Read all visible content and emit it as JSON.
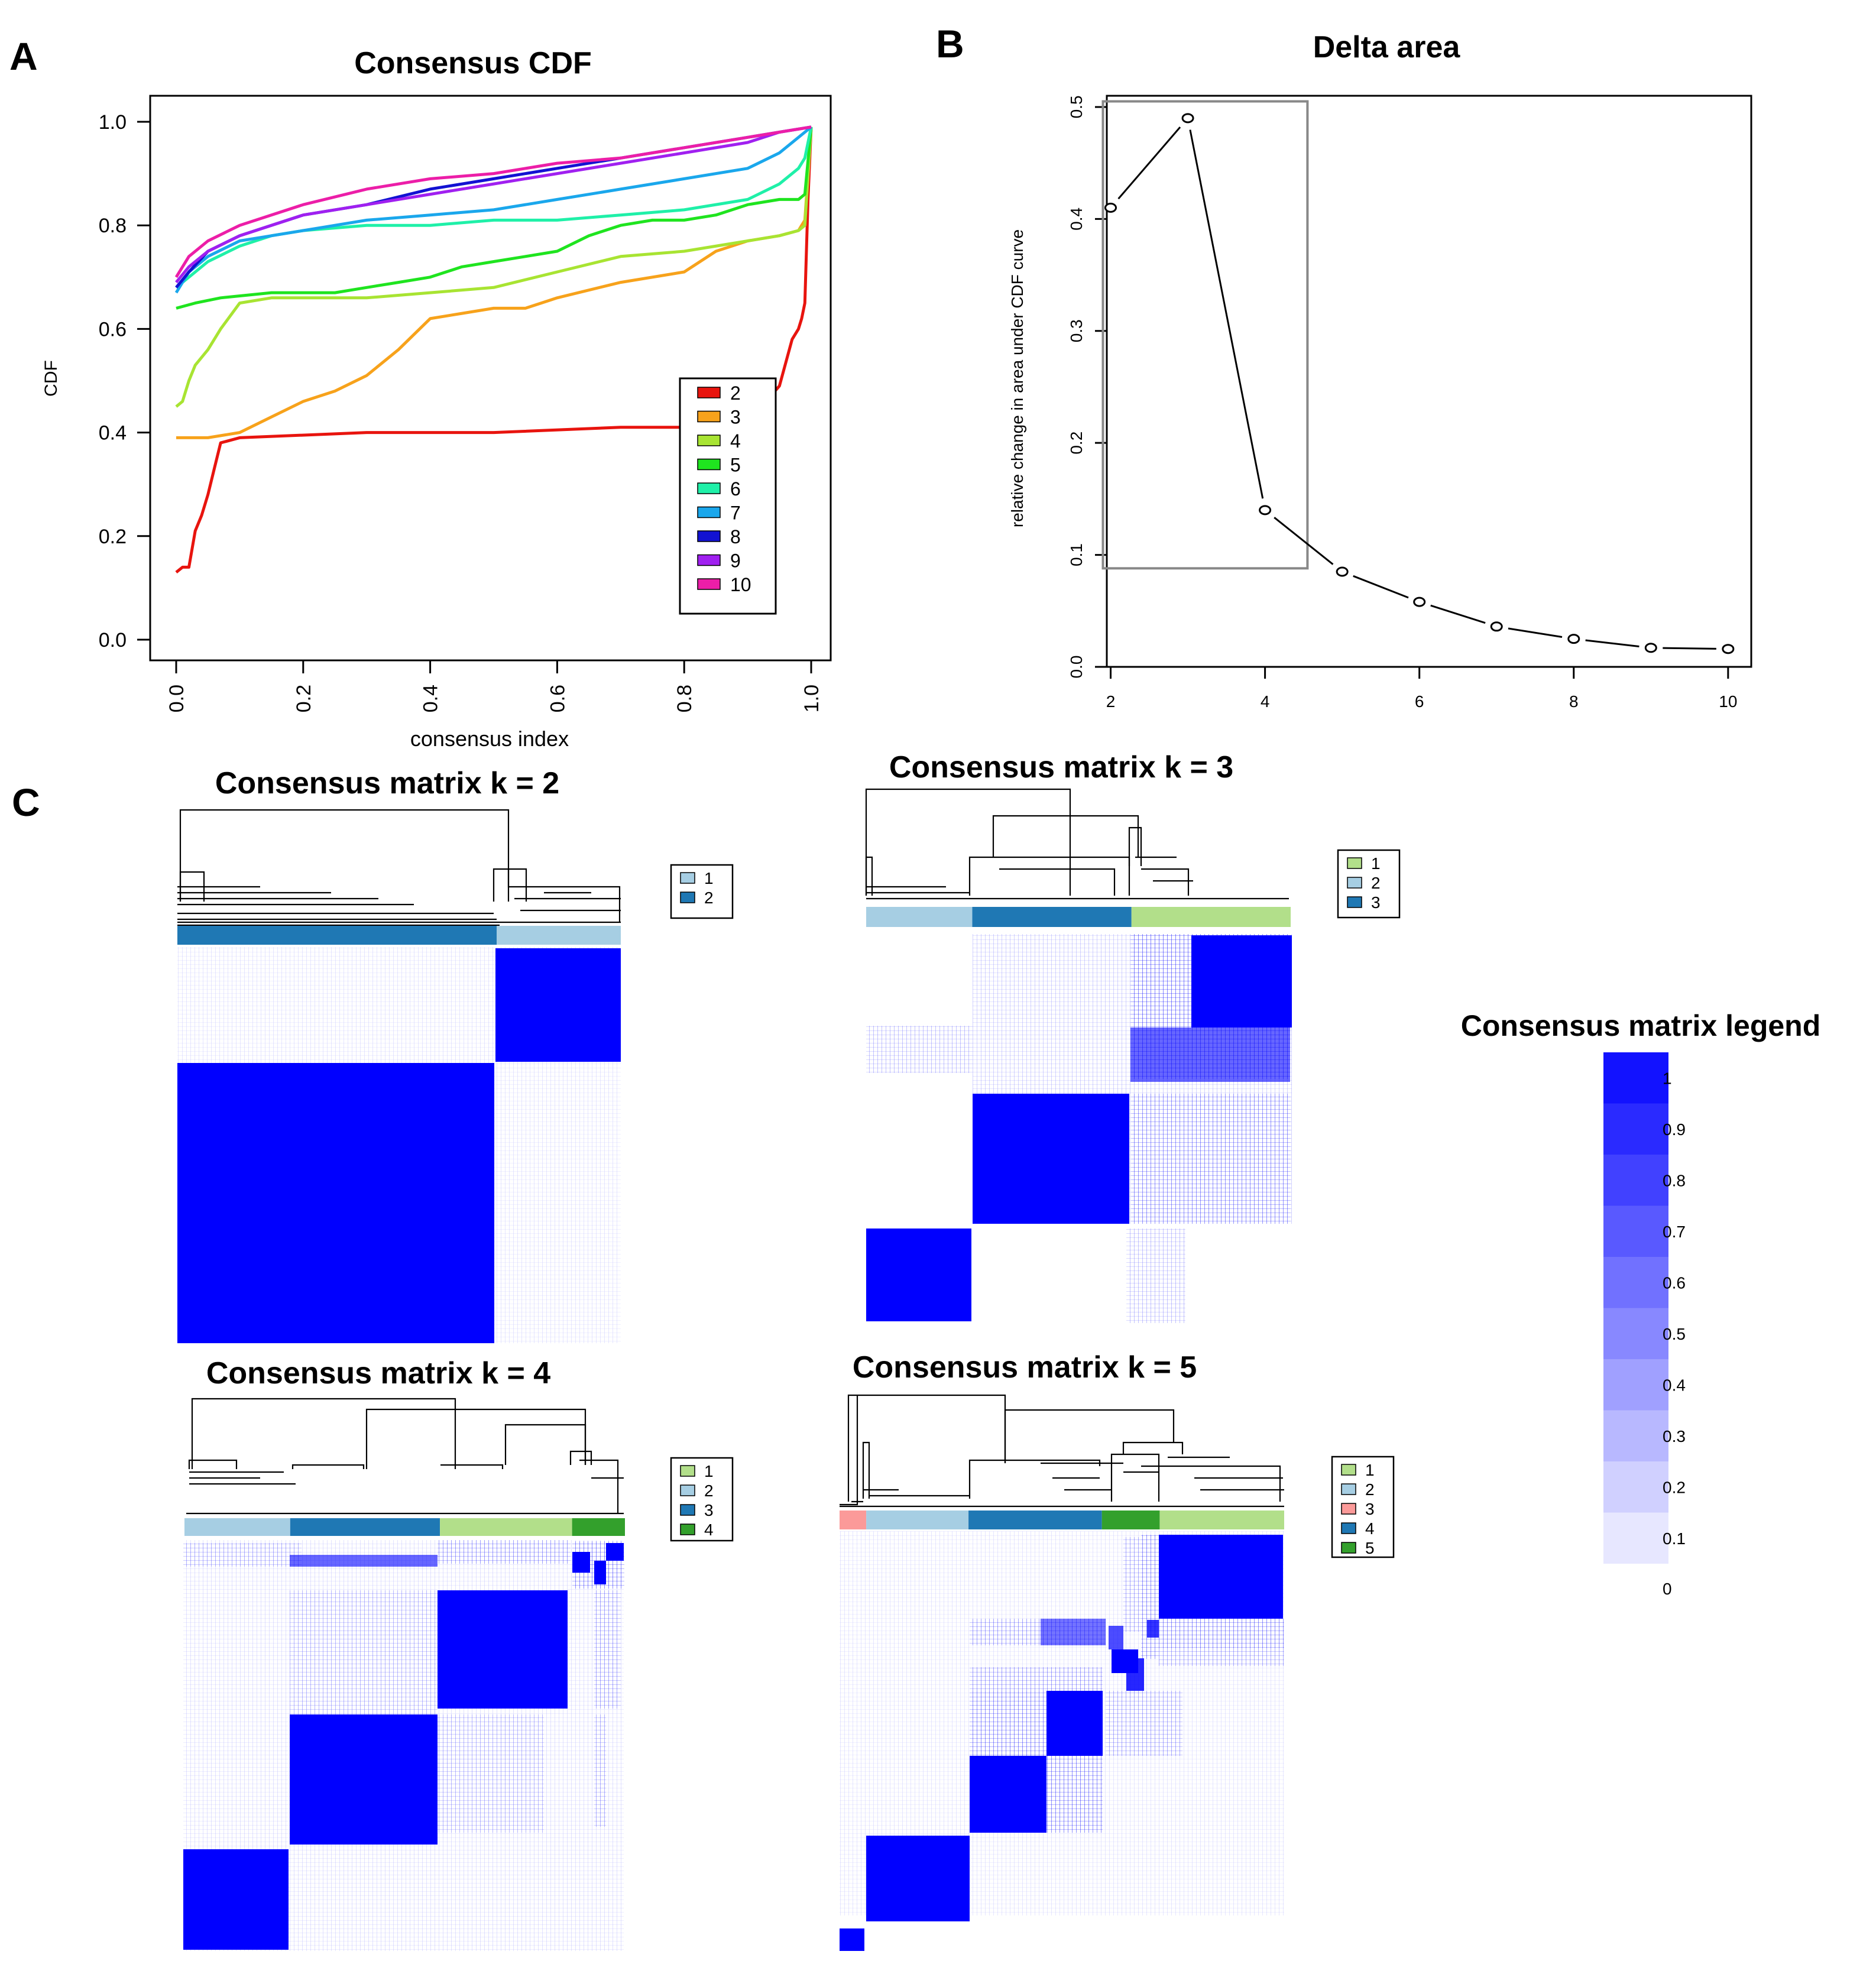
{
  "panel_labels": {
    "a": "A",
    "b": "B",
    "c": "C"
  },
  "colors": {
    "k2": "#e8140e",
    "k3": "#f7a21b",
    "k4": "#a8e432",
    "k5": "#1fe41f",
    "k6": "#1ff0a8",
    "k7": "#1aa7ec",
    "k8": "#1212d2",
    "k9": "#a020f0",
    "k10": "#ec1ea8",
    "cl_light_blue": "#a6cee3",
    "cl_dark_blue": "#1f78b4",
    "cl_light_green": "#b2df8a",
    "cl_dark_green": "#33a02c",
    "cl_pink": "#fb9a99",
    "matrix_blue": "#0000ff"
  },
  "chart_data": [
    {
      "id": "cdf",
      "type": "line",
      "title": "Consensus CDF",
      "xlabel": "consensus index",
      "ylabel": "CDF",
      "xlim": [
        0,
        1
      ],
      "ylim": [
        0,
        1
      ],
      "xticks": [
        "0.0",
        "0.2",
        "0.4",
        "0.6",
        "0.8",
        "1.0"
      ],
      "yticks": [
        "0.0",
        "0.2",
        "0.4",
        "0.6",
        "0.8",
        "1.0"
      ],
      "legend_position": "bottom-right",
      "series": [
        {
          "name": "2",
          "x": [
            0.0,
            0.01,
            0.02,
            0.03,
            0.04,
            0.05,
            0.06,
            0.07,
            0.1,
            0.3,
            0.5,
            0.7,
            0.8,
            0.9,
            0.95,
            0.97,
            0.98,
            0.985,
            0.99,
            0.995,
            1.0
          ],
          "y": [
            0.13,
            0.14,
            0.14,
            0.21,
            0.24,
            0.28,
            0.33,
            0.38,
            0.39,
            0.4,
            0.4,
            0.41,
            0.41,
            0.42,
            0.49,
            0.58,
            0.6,
            0.62,
            0.65,
            0.85,
            0.99
          ]
        },
        {
          "name": "3",
          "x": [
            0.0,
            0.05,
            0.1,
            0.15,
            0.2,
            0.25,
            0.3,
            0.35,
            0.4,
            0.45,
            0.5,
            0.55,
            0.6,
            0.7,
            0.8,
            0.85,
            0.9,
            0.95,
            0.98,
            0.99,
            1.0
          ],
          "y": [
            0.39,
            0.39,
            0.4,
            0.43,
            0.46,
            0.48,
            0.51,
            0.56,
            0.62,
            0.63,
            0.64,
            0.64,
            0.66,
            0.69,
            0.71,
            0.75,
            0.77,
            0.78,
            0.79,
            0.81,
            0.99
          ]
        },
        {
          "name": "4",
          "x": [
            0.0,
            0.01,
            0.02,
            0.03,
            0.05,
            0.07,
            0.1,
            0.15,
            0.2,
            0.3,
            0.4,
            0.5,
            0.6,
            0.7,
            0.8,
            0.9,
            0.95,
            0.98,
            0.99,
            1.0
          ],
          "y": [
            0.45,
            0.46,
            0.5,
            0.53,
            0.56,
            0.6,
            0.65,
            0.66,
            0.66,
            0.66,
            0.67,
            0.68,
            0.71,
            0.74,
            0.75,
            0.77,
            0.78,
            0.79,
            0.8,
            0.99
          ]
        },
        {
          "name": "5",
          "x": [
            0.0,
            0.03,
            0.07,
            0.15,
            0.25,
            0.3,
            0.35,
            0.4,
            0.45,
            0.5,
            0.55,
            0.6,
            0.65,
            0.7,
            0.75,
            0.8,
            0.85,
            0.9,
            0.95,
            0.98,
            0.99,
            1.0
          ],
          "y": [
            0.64,
            0.65,
            0.66,
            0.67,
            0.67,
            0.68,
            0.69,
            0.7,
            0.72,
            0.73,
            0.74,
            0.75,
            0.78,
            0.8,
            0.81,
            0.81,
            0.82,
            0.84,
            0.85,
            0.85,
            0.86,
            0.99
          ]
        },
        {
          "name": "6",
          "x": [
            0.0,
            0.02,
            0.05,
            0.1,
            0.15,
            0.2,
            0.3,
            0.4,
            0.5,
            0.6,
            0.7,
            0.8,
            0.9,
            0.95,
            0.98,
            0.99,
            1.0
          ],
          "y": [
            0.68,
            0.7,
            0.73,
            0.76,
            0.78,
            0.79,
            0.8,
            0.8,
            0.81,
            0.81,
            0.82,
            0.83,
            0.85,
            0.88,
            0.91,
            0.93,
            0.99
          ]
        },
        {
          "name": "7",
          "x": [
            0.0,
            0.02,
            0.05,
            0.1,
            0.2,
            0.3,
            0.4,
            0.5,
            0.6,
            0.7,
            0.8,
            0.9,
            0.95,
            1.0
          ],
          "y": [
            0.67,
            0.71,
            0.74,
            0.77,
            0.79,
            0.81,
            0.82,
            0.83,
            0.85,
            0.87,
            0.89,
            0.91,
            0.94,
            0.99
          ]
        },
        {
          "name": "8",
          "x": [
            0.0,
            0.02,
            0.05,
            0.1,
            0.2,
            0.3,
            0.4,
            0.5,
            0.6,
            0.7,
            0.8,
            0.9,
            0.95,
            1.0
          ],
          "y": [
            0.68,
            0.71,
            0.75,
            0.78,
            0.82,
            0.84,
            0.87,
            0.89,
            0.91,
            0.93,
            0.95,
            0.97,
            0.98,
            0.99
          ]
        },
        {
          "name": "9",
          "x": [
            0.0,
            0.02,
            0.05,
            0.1,
            0.2,
            0.3,
            0.4,
            0.5,
            0.6,
            0.7,
            0.8,
            0.9,
            0.95,
            1.0
          ],
          "y": [
            0.69,
            0.72,
            0.75,
            0.78,
            0.82,
            0.84,
            0.86,
            0.88,
            0.9,
            0.92,
            0.94,
            0.96,
            0.98,
            0.99
          ]
        },
        {
          "name": "10",
          "x": [
            0.0,
            0.02,
            0.05,
            0.1,
            0.2,
            0.3,
            0.4,
            0.5,
            0.6,
            0.7,
            0.8,
            0.9,
            0.95,
            1.0
          ],
          "y": [
            0.7,
            0.74,
            0.77,
            0.8,
            0.84,
            0.87,
            0.89,
            0.9,
            0.92,
            0.93,
            0.95,
            0.97,
            0.98,
            0.99
          ]
        }
      ]
    },
    {
      "id": "delta",
      "type": "scatter",
      "title": "Delta area",
      "xlabel": "",
      "ylabel": "relative change in area under CDF curve",
      "xlim": [
        1.95,
        10.3
      ],
      "ylim": [
        0,
        0.51
      ],
      "xticks": [
        "2",
        "4",
        "6",
        "8",
        "10"
      ],
      "yticks": [
        "0.0",
        "0.1",
        "0.2",
        "0.3",
        "0.4",
        "0.5"
      ],
      "x": [
        2,
        3,
        4,
        5,
        6,
        7,
        8,
        9,
        10
      ],
      "y": [
        0.41,
        0.49,
        0.14,
        0.085,
        0.058,
        0.036,
        0.025,
        0.017,
        0.016
      ],
      "highlight_box": {
        "x": [
          1.9,
          4.55
        ],
        "y": [
          0.088,
          0.505
        ]
      }
    },
    {
      "id": "k2",
      "type": "heatmap",
      "title": "Consensus matrix k = 2",
      "legend": [
        "1",
        "2"
      ],
      "cluster_bar": [
        {
          "cluster": "2",
          "share": 0.72
        },
        {
          "cluster": "1",
          "share": 0.28
        }
      ]
    },
    {
      "id": "k3",
      "type": "heatmap",
      "title": "Consensus matrix k = 3",
      "legend": [
        "1",
        "2",
        "3"
      ],
      "cluster_bar": [
        {
          "cluster": "2",
          "share": 0.25
        },
        {
          "cluster": "3",
          "share": 0.375
        },
        {
          "cluster": "1",
          "share": 0.375
        }
      ]
    },
    {
      "id": "k4",
      "type": "heatmap",
      "title": "Consensus matrix k = 4",
      "legend": [
        "1",
        "2",
        "3",
        "4"
      ],
      "cluster_bar": [
        {
          "cluster": "2",
          "share": 0.24
        },
        {
          "cluster": "3",
          "share": 0.34
        },
        {
          "cluster": "1",
          "share": 0.3
        },
        {
          "cluster": "4",
          "share": 0.12
        }
      ]
    },
    {
      "id": "k5",
      "type": "heatmap",
      "title": "Consensus matrix k = 5",
      "legend": [
        "1",
        "2",
        "3",
        "4",
        "5"
      ],
      "cluster_bar": [
        {
          "cluster": "3",
          "share": 0.06
        },
        {
          "cluster": "2",
          "share": 0.23
        },
        {
          "cluster": "4",
          "share": 0.3
        },
        {
          "cluster": "5",
          "share": 0.13
        },
        {
          "cluster": "1",
          "share": 0.28
        }
      ]
    },
    {
      "id": "matrix_legend",
      "type": "heatmap",
      "title": "Consensus matrix legend",
      "scale_labels": [
        "1",
        "0.9",
        "0.8",
        "0.7",
        "0.6",
        "0.5",
        "0.4",
        "0.3",
        "0.2",
        "0.1",
        "0"
      ],
      "scale_values": [
        1,
        0.9,
        0.8,
        0.7,
        0.6,
        0.5,
        0.4,
        0.3,
        0.2,
        0.1
      ]
    }
  ]
}
